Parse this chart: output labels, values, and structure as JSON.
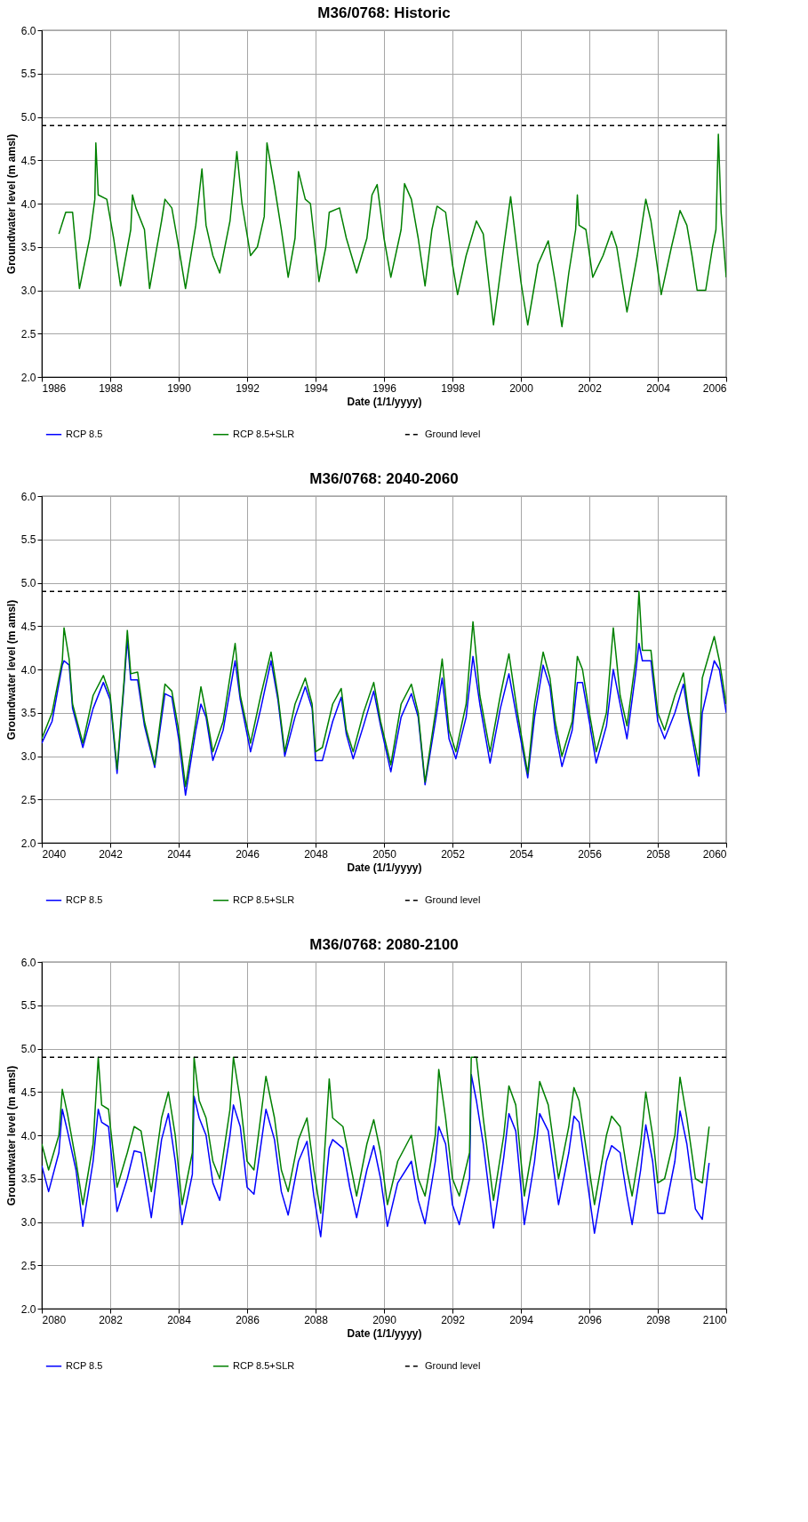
{
  "chart_data": [
    {
      "type": "line",
      "title": "M36/0768: Historic",
      "xlabel": "Date (1/1/yyyy)",
      "ylabel": "Groundwater level (m amsl)",
      "xlim": [
        1986,
        2006
      ],
      "xticks": [
        1986,
        1988,
        1990,
        1992,
        1994,
        1996,
        1998,
        2000,
        2002,
        2004,
        2006
      ],
      "ylim": [
        2,
        6
      ],
      "yticks": [
        {
          "value": 2,
          "label": "2.0"
        },
        {
          "value": 2.5,
          "label": "2.5"
        },
        {
          "value": 3,
          "label": "3.0"
        },
        {
          "value": 3.5,
          "label": "3.5"
        },
        {
          "value": 4,
          "label": "4.0"
        },
        {
          "value": 4.5,
          "label": "4.5"
        },
        {
          "value": 5,
          "label": "5.0"
        },
        {
          "value": 5.5,
          "label": "5.5"
        },
        {
          "value": 6,
          "label": "6.0"
        }
      ],
      "grid": true,
      "legend": "bottom",
      "x": [
        1986.5,
        1986.7,
        1986.9,
        1987.1,
        1987.4,
        1987.55,
        1987.58,
        1987.65,
        1987.9,
        1988.1,
        1988.3,
        1988.6,
        1988.65,
        1988.75,
        1989.0,
        1989.15,
        1989.5,
        1989.6,
        1989.8,
        1990.0,
        1990.2,
        1990.5,
        1990.68,
        1990.8,
        1991.0,
        1991.2,
        1991.5,
        1991.7,
        1991.85,
        1992.1,
        1992.3,
        1992.5,
        1992.58,
        1992.8,
        1993.0,
        1993.2,
        1993.4,
        1993.5,
        1993.7,
        1993.85,
        1994.1,
        1994.3,
        1994.4,
        1994.7,
        1994.9,
        1995.2,
        1995.5,
        1995.65,
        1995.8,
        1996.0,
        1996.2,
        1996.5,
        1996.6,
        1996.8,
        1997.0,
        1997.2,
        1997.4,
        1997.55,
        1997.8,
        1998.0,
        1998.15,
        1998.4,
        1998.7,
        1998.9,
        1999.2,
        1999.5,
        1999.7,
        2000.0,
        2000.2,
        2000.5,
        2000.8,
        2001.0,
        2001.2,
        2001.4,
        2001.6,
        2001.65,
        2001.7,
        2001.9,
        2002.1,
        2002.4,
        2002.65,
        2002.8,
        2003.1,
        2003.4,
        2003.65,
        2003.8,
        2004.1,
        2004.4,
        2004.65,
        2004.85,
        2005.0,
        2005.15,
        2005.4,
        2005.6,
        2005.7,
        2005.77,
        2005.85,
        2006.0
      ],
      "series": [
        {
          "name": "RCP 8.5",
          "color": "#0000ff",
          "values": [
            null,
            null,
            null,
            null,
            null,
            null,
            null,
            null,
            null,
            null,
            null,
            null,
            null,
            null,
            null,
            null,
            null,
            null,
            null,
            null,
            null,
            null,
            null,
            null,
            null,
            null,
            null,
            null,
            null,
            null,
            null,
            null,
            null,
            null,
            null,
            null,
            null,
            null,
            null,
            null,
            null,
            null,
            null,
            null,
            null,
            null,
            null,
            null,
            null,
            null,
            null,
            null,
            null,
            null,
            null,
            null,
            null,
            null,
            null,
            null,
            null,
            null,
            null,
            null,
            null,
            null,
            null,
            null,
            null,
            null,
            null,
            null,
            null,
            null,
            null,
            null,
            null,
            null,
            null,
            null,
            null,
            null,
            null,
            null,
            null,
            null,
            null,
            null,
            null,
            null,
            null,
            null,
            null,
            null,
            null,
            null,
            null,
            null
          ]
        },
        {
          "name": "RCP 8.5+SLR",
          "color": "#008000",
          "values": [
            3.65,
            3.9,
            3.9,
            3.02,
            3.6,
            4.05,
            4.7,
            4.1,
            4.05,
            3.6,
            3.05,
            3.7,
            4.1,
            3.95,
            3.7,
            3.02,
            3.8,
            4.05,
            3.95,
            3.5,
            3.02,
            3.75,
            4.4,
            3.75,
            3.4,
            3.2,
            3.8,
            4.6,
            4.0,
            3.4,
            3.5,
            3.85,
            4.7,
            4.2,
            3.7,
            3.15,
            3.6,
            4.37,
            4.05,
            4.0,
            3.1,
            3.5,
            3.9,
            3.95,
            3.6,
            3.2,
            3.6,
            4.1,
            4.22,
            3.6,
            3.15,
            3.7,
            4.23,
            4.05,
            3.6,
            3.05,
            3.7,
            3.97,
            3.9,
            3.3,
            2.95,
            3.4,
            3.8,
            3.65,
            2.6,
            3.5,
            4.08,
            3.1,
            2.6,
            3.3,
            3.57,
            3.1,
            2.58,
            3.2,
            3.7,
            4.1,
            3.75,
            3.7,
            3.15,
            3.4,
            3.68,
            3.5,
            2.75,
            3.4,
            4.05,
            3.8,
            2.95,
            3.5,
            3.92,
            3.75,
            3.4,
            3.0,
            3.0,
            3.5,
            3.7,
            4.8,
            3.9,
            3.15
          ]
        }
      ],
      "ref_lines": [
        {
          "axis": "y",
          "value": 4.9,
          "label": "Ground level",
          "color": "#000000",
          "line_style": "dashed"
        }
      ]
    },
    {
      "type": "line",
      "title": "M36/0768: 2040-2060",
      "xlabel": "Date (1/1/yyyy)",
      "ylabel": "Groundwater level (m amsl)",
      "xlim": [
        2040,
        2060
      ],
      "xticks": [
        2040,
        2042,
        2044,
        2046,
        2048,
        2050,
        2052,
        2054,
        2056,
        2058,
        2060
      ],
      "ylim": [
        2,
        6
      ],
      "yticks": [
        {
          "value": 2,
          "label": "2.0"
        },
        {
          "value": 2.5,
          "label": "2.5"
        },
        {
          "value": 3,
          "label": "3.0"
        },
        {
          "value": 3.5,
          "label": "3.5"
        },
        {
          "value": 4,
          "label": "4.0"
        },
        {
          "value": 4.5,
          "label": "4.5"
        },
        {
          "value": 5,
          "label": "5.0"
        },
        {
          "value": 5.5,
          "label": "5.5"
        },
        {
          "value": 6,
          "label": "6.0"
        }
      ],
      "grid": true,
      "legend": "bottom",
      "x": [
        2040.0,
        2040.3,
        2040.6,
        2040.65,
        2040.8,
        2040.9,
        2041.2,
        2041.5,
        2041.8,
        2042.0,
        2042.2,
        2042.4,
        2042.5,
        2042.6,
        2042.8,
        2043.0,
        2043.3,
        2043.6,
        2043.8,
        2044.0,
        2044.2,
        2044.5,
        2044.65,
        2044.8,
        2045.0,
        2045.3,
        2045.65,
        2045.8,
        2046.1,
        2046.4,
        2046.7,
        2046.9,
        2047.1,
        2047.4,
        2047.7,
        2047.9,
        2048.0,
        2048.2,
        2048.5,
        2048.75,
        2048.9,
        2049.1,
        2049.4,
        2049.7,
        2049.9,
        2050.2,
        2050.5,
        2050.8,
        2051.0,
        2051.2,
        2051.5,
        2051.7,
        2051.9,
        2052.1,
        2052.4,
        2052.6,
        2052.8,
        2053.1,
        2053.4,
        2053.65,
        2053.9,
        2054.2,
        2054.4,
        2054.65,
        2054.85,
        2055.0,
        2055.2,
        2055.5,
        2055.65,
        2055.8,
        2056.0,
        2056.2,
        2056.5,
        2056.7,
        2056.9,
        2057.1,
        2057.35,
        2057.45,
        2057.55,
        2057.8,
        2058.0,
        2058.2,
        2058.5,
        2058.75,
        2058.9,
        2059.2,
        2059.3,
        2059.65,
        2059.8,
        2060.0
      ],
      "series": [
        {
          "name": "RCP 8.5",
          "color": "#0000ff",
          "values": [
            3.15,
            3.4,
            4.05,
            4.1,
            4.05,
            3.55,
            3.1,
            3.55,
            3.85,
            3.65,
            2.8,
            3.8,
            4.35,
            3.88,
            3.88,
            3.35,
            2.87,
            3.72,
            3.68,
            3.2,
            2.55,
            3.3,
            3.6,
            3.45,
            2.95,
            3.3,
            4.1,
            3.65,
            3.05,
            3.55,
            4.1,
            3.65,
            3.0,
            3.45,
            3.8,
            3.55,
            2.95,
            2.95,
            3.4,
            3.68,
            3.25,
            2.97,
            3.35,
            3.75,
            3.35,
            2.82,
            3.45,
            3.72,
            3.45,
            2.67,
            3.4,
            3.9,
            3.2,
            2.97,
            3.45,
            4.15,
            3.6,
            2.92,
            3.55,
            3.95,
            3.4,
            2.75,
            3.45,
            4.05,
            3.8,
            3.3,
            2.88,
            3.3,
            3.85,
            3.85,
            3.4,
            2.92,
            3.35,
            4.0,
            3.6,
            3.2,
            3.95,
            4.3,
            4.1,
            4.1,
            3.4,
            3.2,
            3.5,
            3.83,
            3.45,
            2.77,
            3.5,
            4.1,
            4.0,
            3.5
          ]
        },
        {
          "name": "RCP 8.5+SLR",
          "color": "#008000",
          "values": [
            3.2,
            3.5,
            4.1,
            4.48,
            4.12,
            3.6,
            3.15,
            3.7,
            3.93,
            3.7,
            2.85,
            3.85,
            4.45,
            3.95,
            3.97,
            3.4,
            2.9,
            3.83,
            3.75,
            3.3,
            2.65,
            3.4,
            3.8,
            3.5,
            3.05,
            3.4,
            4.3,
            3.7,
            3.15,
            3.7,
            4.2,
            3.7,
            3.05,
            3.6,
            3.9,
            3.6,
            3.05,
            3.1,
            3.6,
            3.78,
            3.3,
            3.05,
            3.5,
            3.85,
            3.4,
            2.9,
            3.6,
            3.83,
            3.5,
            2.7,
            3.5,
            4.12,
            3.3,
            3.05,
            3.6,
            4.55,
            3.7,
            3.05,
            3.7,
            4.18,
            3.5,
            2.8,
            3.6,
            4.2,
            3.9,
            3.4,
            3.0,
            3.4,
            4.15,
            4.0,
            3.5,
            3.05,
            3.5,
            4.48,
            3.7,
            3.35,
            4.1,
            4.9,
            4.22,
            4.22,
            3.5,
            3.3,
            3.7,
            3.96,
            3.5,
            2.9,
            3.9,
            4.38,
            4.1,
            3.6
          ]
        }
      ],
      "ref_lines": [
        {
          "axis": "y",
          "value": 4.9,
          "label": "Ground level",
          "color": "#000000",
          "line_style": "dashed"
        }
      ]
    },
    {
      "type": "line",
      "title": "M36/0768: 2080-2100",
      "xlabel": "Date (1/1/yyyy)",
      "ylabel": "Groundwater level (m amsl)",
      "xlim": [
        2080,
        2100
      ],
      "xticks": [
        2080,
        2082,
        2084,
        2086,
        2088,
        2090,
        2092,
        2094,
        2096,
        2098,
        2100
      ],
      "ylim": [
        2,
        6
      ],
      "yticks": [
        {
          "value": 2,
          "label": "2.0"
        },
        {
          "value": 2.5,
          "label": "2.5"
        },
        {
          "value": 3,
          "label": "3.0"
        },
        {
          "value": 3.5,
          "label": "3.5"
        },
        {
          "value": 4,
          "label": "4.0"
        },
        {
          "value": 4.5,
          "label": "4.5"
        },
        {
          "value": 5,
          "label": "5.0"
        },
        {
          "value": 5.5,
          "label": "5.5"
        },
        {
          "value": 6,
          "label": "6.0"
        }
      ],
      "grid": true,
      "legend": "bottom",
      "x": [
        2080.0,
        2080.2,
        2080.5,
        2080.6,
        2080.75,
        2081.0,
        2081.2,
        2081.5,
        2081.65,
        2081.75,
        2081.95,
        2082.2,
        2082.5,
        2082.7,
        2082.9,
        2083.2,
        2083.5,
        2083.7,
        2083.9,
        2084.1,
        2084.4,
        2084.45,
        2084.6,
        2084.8,
        2085.0,
        2085.2,
        2085.5,
        2085.6,
        2085.8,
        2086.0,
        2086.2,
        2086.55,
        2086.8,
        2087.0,
        2087.2,
        2087.5,
        2087.75,
        2087.95,
        2088.15,
        2088.4,
        2088.5,
        2088.8,
        2089.0,
        2089.2,
        2089.5,
        2089.7,
        2089.9,
        2090.1,
        2090.4,
        2090.8,
        2091.0,
        2091.2,
        2091.5,
        2091.6,
        2091.8,
        2092.0,
        2092.2,
        2092.5,
        2092.55,
        2092.7,
        2092.9,
        2093.2,
        2093.5,
        2093.65,
        2093.85,
        2094.1,
        2094.4,
        2094.55,
        2094.8,
        2095.1,
        2095.4,
        2095.55,
        2095.7,
        2096.0,
        2096.15,
        2096.5,
        2096.65,
        2096.9,
        2097.1,
        2097.25,
        2097.5,
        2097.65,
        2097.85,
        2098.0,
        2098.2,
        2098.5,
        2098.65,
        2098.85,
        2099.1,
        2099.3,
        2099.5
      ],
      "series": [
        {
          "name": "RCP 8.5",
          "color": "#0000ff",
          "values": [
            3.65,
            3.35,
            3.8,
            4.3,
            4.05,
            3.6,
            2.95,
            3.7,
            4.3,
            4.15,
            4.1,
            3.12,
            3.5,
            3.82,
            3.8,
            3.05,
            3.95,
            4.25,
            3.7,
            2.97,
            3.55,
            4.45,
            4.2,
            4.0,
            3.45,
            3.25,
            4.0,
            4.35,
            4.1,
            3.4,
            3.32,
            4.3,
            3.95,
            3.35,
            3.08,
            3.7,
            3.93,
            3.3,
            2.83,
            3.85,
            3.95,
            3.85,
            3.4,
            3.05,
            3.6,
            3.88,
            3.5,
            2.95,
            3.45,
            3.7,
            3.25,
            2.98,
            3.7,
            4.1,
            3.9,
            3.2,
            2.97,
            3.5,
            4.7,
            4.4,
            3.9,
            2.93,
            3.75,
            4.25,
            4.05,
            2.97,
            3.7,
            4.25,
            4.05,
            3.2,
            3.8,
            4.22,
            4.15,
            3.3,
            2.87,
            3.7,
            3.88,
            3.8,
            3.3,
            2.97,
            3.6,
            4.12,
            3.7,
            3.1,
            3.1,
            3.7,
            4.28,
            3.9,
            3.15,
            3.03,
            3.68
          ]
        },
        {
          "name": "RCP 8.5+SLR",
          "color": "#008000",
          "values": [
            3.9,
            3.6,
            4.0,
            4.53,
            4.25,
            3.7,
            3.2,
            3.9,
            4.9,
            4.35,
            4.3,
            3.4,
            3.8,
            4.1,
            4.05,
            3.35,
            4.2,
            4.5,
            4.0,
            3.2,
            3.8,
            4.9,
            4.4,
            4.2,
            3.7,
            3.5,
            4.3,
            4.9,
            4.4,
            3.7,
            3.6,
            4.68,
            4.2,
            3.6,
            3.35,
            3.95,
            4.2,
            3.6,
            3.1,
            4.65,
            4.2,
            4.1,
            3.7,
            3.3,
            3.9,
            4.18,
            3.8,
            3.2,
            3.7,
            4.0,
            3.5,
            3.3,
            4.0,
            4.76,
            4.2,
            3.5,
            3.3,
            3.8,
            4.9,
            4.9,
            4.2,
            3.25,
            4.0,
            4.57,
            4.35,
            3.3,
            4.0,
            4.62,
            4.35,
            3.5,
            4.1,
            4.55,
            4.4,
            3.6,
            3.2,
            4.0,
            4.22,
            4.1,
            3.6,
            3.3,
            3.9,
            4.5,
            4.0,
            3.45,
            3.5,
            4.0,
            4.67,
            4.2,
            3.5,
            3.45,
            4.1
          ]
        }
      ],
      "ref_lines": [
        {
          "axis": "y",
          "value": 4.9,
          "label": "Ground level",
          "color": "#000000",
          "line_style": "dashed"
        }
      ]
    }
  ]
}
